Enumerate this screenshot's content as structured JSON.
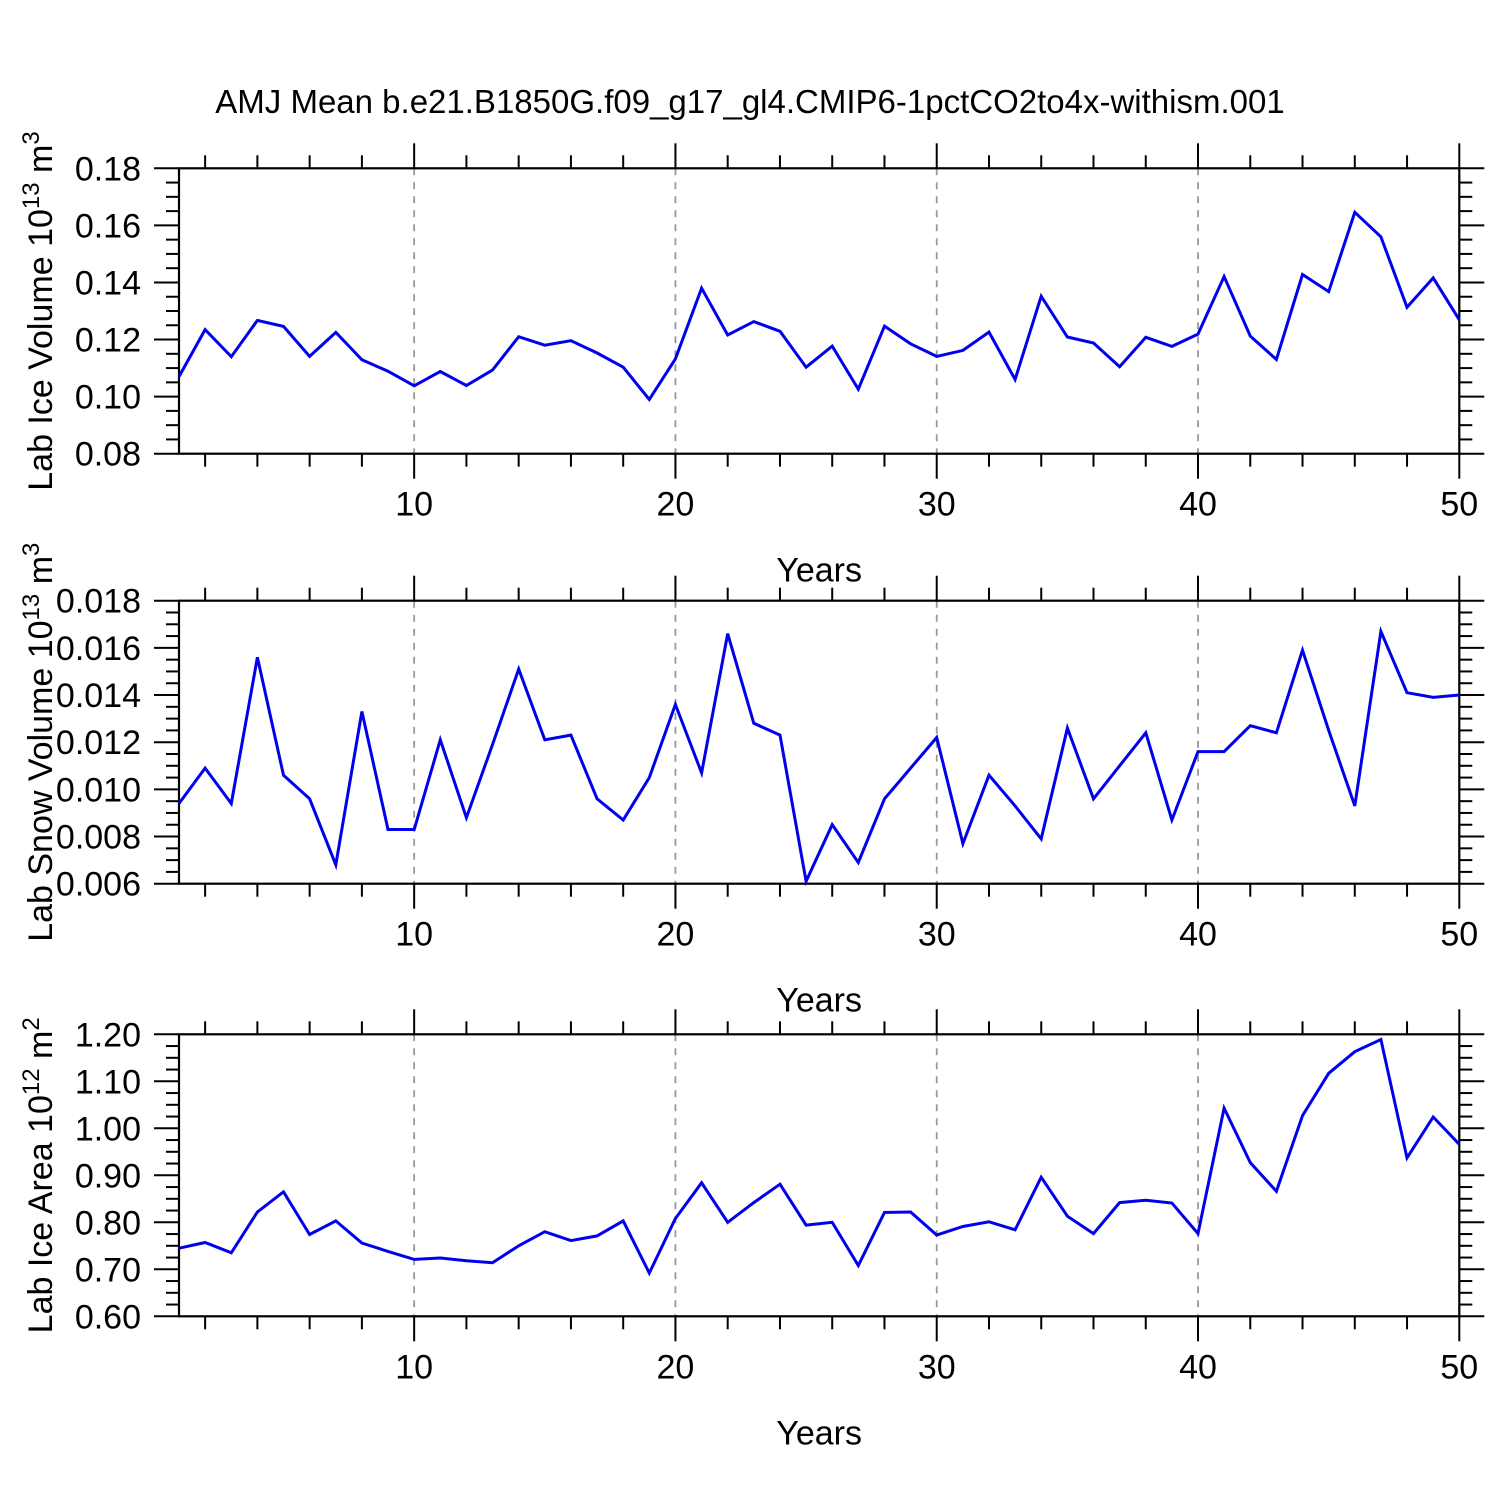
{
  "title": "AMJ Mean b.e21.B1850G.f09_g17_gl4.CMIP6-1pctCO2to4x-withism.001",
  "xlabel": "Years",
  "line_color": "#0000ee",
  "grid_color": "#999999",
  "axis_color": "#000000",
  "x_tick_labels": [
    "10",
    "20",
    "30",
    "40",
    "50"
  ],
  "chart_data": [
    {
      "type": "line",
      "name": "lab-ice-volume",
      "ylabel": "Lab Ice Volume 10^13 m^3",
      "ylabel_rich": [
        {
          "t": "Lab Ice Volume 10"
        },
        {
          "t": "13",
          "sup": true
        },
        {
          "t": " m"
        },
        {
          "t": "3",
          "sup": true
        }
      ],
      "xlabel": "Years",
      "x_start": 1,
      "x_end": 50,
      "ymin": 0.08,
      "ymax": 0.18,
      "yticks": [
        0.08,
        0.1,
        0.12,
        0.14,
        0.16,
        0.18
      ],
      "ytick_labels": [
        "0.08",
        "0.10",
        "0.12",
        "0.14",
        "0.16",
        "0.18"
      ],
      "y_minor_step": 0.005,
      "xticks": [
        10,
        20,
        30,
        40,
        50
      ],
      "x_minor_step": 2,
      "grid_x": [
        10,
        20,
        30,
        40
      ],
      "values": [
        0.107,
        0.1235,
        0.114,
        0.1267,
        0.1246,
        0.1141,
        0.1225,
        0.1129,
        0.1089,
        0.1038,
        0.1088,
        0.1039,
        0.1093,
        0.121,
        0.118,
        0.1196,
        0.1153,
        0.1103,
        0.099,
        0.1132,
        0.138,
        0.1216,
        0.1263,
        0.1229,
        0.1103,
        0.1177,
        0.1026,
        0.1247,
        0.1185,
        0.1141,
        0.1162,
        0.1226,
        0.106,
        0.1352,
        0.1209,
        0.1188,
        0.1105,
        0.1208,
        0.1176,
        0.1219,
        0.1421,
        0.1212,
        0.113,
        0.1428,
        0.1368,
        0.1646,
        0.156,
        0.1313,
        0.1416,
        0.1269
      ]
    },
    {
      "type": "line",
      "name": "lab-snow-volume",
      "ylabel": "Lab Snow Volume 10^13 m^3",
      "ylabel_rich": [
        {
          "t": "Lab Snow Volume 10"
        },
        {
          "t": "13",
          "sup": true
        },
        {
          "t": " m"
        },
        {
          "t": "3",
          "sup": true
        }
      ],
      "xlabel": "Years",
      "x_start": 1,
      "x_end": 50,
      "ymin": 0.006,
      "ymax": 0.018,
      "yticks": [
        0.006,
        0.008,
        0.01,
        0.012,
        0.014,
        0.016,
        0.018
      ],
      "ytick_labels": [
        "0.006",
        "0.008",
        "0.010",
        "0.012",
        "0.014",
        "0.016",
        "0.018"
      ],
      "y_minor_step": 0.0005,
      "xticks": [
        10,
        20,
        30,
        40,
        50
      ],
      "x_minor_step": 2,
      "grid_x": [
        10,
        20,
        30,
        40
      ],
      "values": [
        0.0094,
        0.0109,
        0.0094,
        0.0156,
        0.0106,
        0.0096,
        0.0068,
        0.0133,
        0.0083,
        0.0083,
        0.0121,
        0.0088,
        0.0119,
        0.0151,
        0.0121,
        0.0123,
        0.0096,
        0.0087,
        0.0105,
        0.0136,
        0.0107,
        0.0166,
        0.0128,
        0.0123,
        0.0061,
        0.0085,
        0.0069,
        0.0096,
        0.0109,
        0.0122,
        0.0077,
        0.0106,
        0.0093,
        0.0079,
        0.0126,
        0.0096,
        0.011,
        0.0124,
        0.0087,
        0.0116,
        0.0116,
        0.0127,
        0.0124,
        0.0159,
        0.0125,
        0.0093,
        0.0167,
        0.0141,
        0.0139,
        0.014
      ]
    },
    {
      "type": "line",
      "name": "lab-ice-area",
      "ylabel": "Lab Ice Area 10^12 m^2",
      "ylabel_rich": [
        {
          "t": "Lab Ice Area 10"
        },
        {
          "t": "12",
          "sup": true
        },
        {
          "t": " m"
        },
        {
          "t": "2",
          "sup": true
        }
      ],
      "xlabel": "Years",
      "x_start": 1,
      "x_end": 50,
      "ymin": 0.6,
      "ymax": 1.2,
      "yticks": [
        0.6,
        0.7,
        0.8,
        0.9,
        1.0,
        1.1,
        1.2
      ],
      "ytick_labels": [
        "0.60",
        "0.70",
        "0.80",
        "0.90",
        "1.00",
        "1.10",
        "1.20"
      ],
      "y_minor_step": 0.025,
      "xticks": [
        10,
        20,
        30,
        40,
        50
      ],
      "x_minor_step": 2,
      "grid_x": [
        10,
        20,
        30,
        40
      ],
      "values": [
        0.745,
        0.757,
        0.735,
        0.822,
        0.865,
        0.774,
        0.803,
        0.756,
        0.738,
        0.721,
        0.724,
        0.718,
        0.714,
        0.75,
        0.78,
        0.761,
        0.771,
        0.803,
        0.692,
        0.808,
        0.884,
        0.8,
        0.842,
        0.881,
        0.794,
        0.8,
        0.708,
        0.821,
        0.822,
        0.773,
        0.791,
        0.801,
        0.784,
        0.896,
        0.813,
        0.776,
        0.842,
        0.847,
        0.841,
        0.776,
        1.043,
        0.927,
        0.866,
        1.027,
        1.117,
        1.163,
        1.189,
        0.937,
        1.024,
        0.966
      ]
    }
  ]
}
